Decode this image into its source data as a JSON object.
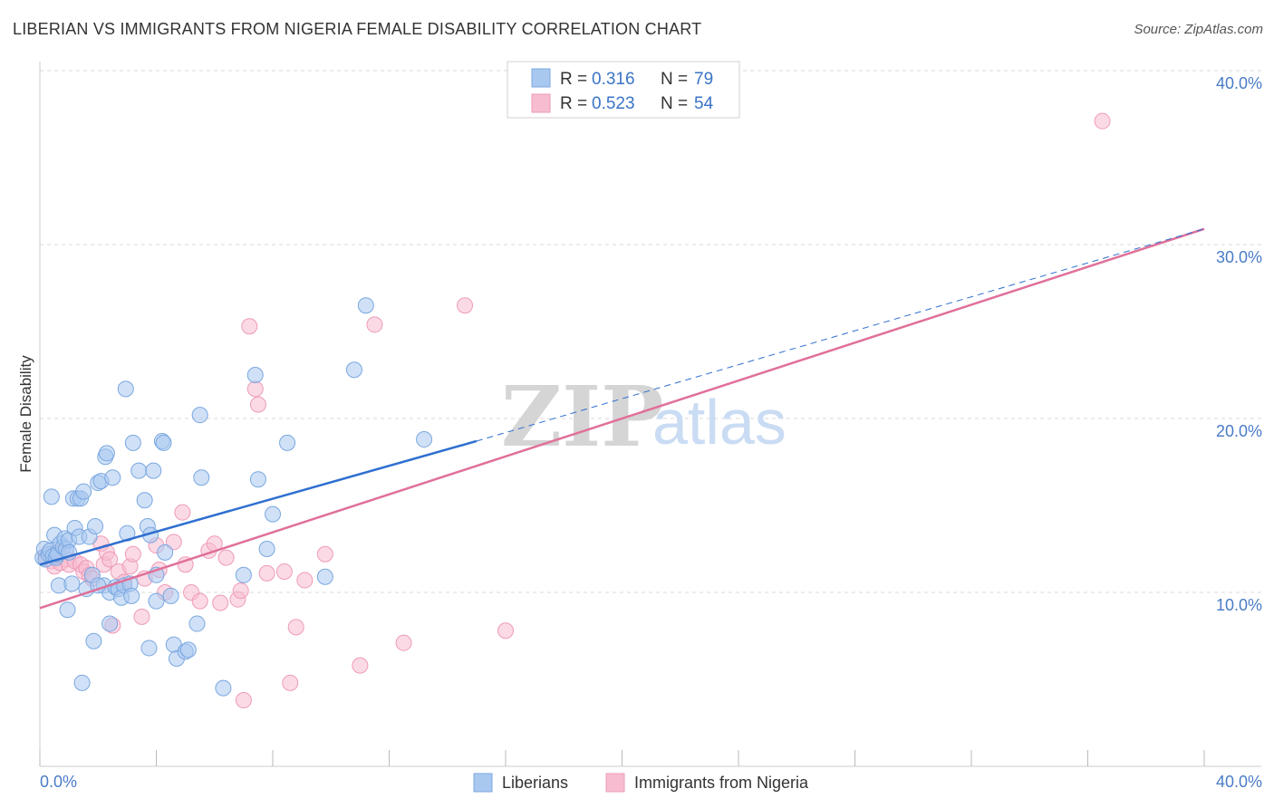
{
  "header": {
    "title": "LIBERIAN VS IMMIGRANTS FROM NIGERIA FEMALE DISABILITY CORRELATION CHART",
    "source": "Source: ZipAtlas.com"
  },
  "watermark": {
    "zip": "ZIP",
    "atlas": "atlas"
  },
  "legend": {
    "rows": [
      {
        "r_label": "R = ",
        "r_value": "0.316",
        "n_label": "N = ",
        "n_value": "79"
      },
      {
        "r_label": "R = ",
        "r_value": "0.523",
        "n_label": "N = ",
        "n_value": "54"
      }
    ]
  },
  "bottom_legend": {
    "liberians": "Liberians",
    "nigeria": "Immigrants from Nigeria"
  },
  "colors": {
    "liberians_fill": "#a9c8f0",
    "liberians_stroke": "#7aa7e0",
    "liberians_line": "#2f6fd0",
    "nigeria_fill": "#f7bcd0",
    "nigeria_stroke": "#ee9bb8",
    "nigeria_line": "#e0709a",
    "tick_text": "#4a7cc7",
    "grid": "#d8d8d8"
  },
  "chart_data": {
    "type": "scatter",
    "title": "LIBERIAN VS IMMIGRANTS FROM NIGERIA FEMALE DISABILITY CORRELATION CHART",
    "xlabel": "",
    "ylabel": "Female Disability",
    "xlim": [
      0,
      40
    ],
    "ylim": [
      0,
      40
    ],
    "x_tick_labels": [
      "0.0%",
      "40.0%"
    ],
    "y_ticks": [
      10,
      20,
      30,
      40
    ],
    "y_tick_labels": [
      "10.0%",
      "20.0%",
      "30.0%",
      "40.0%"
    ],
    "grid": true,
    "legend_position": "top-center",
    "series": [
      {
        "name": "Liberians",
        "r": 0.316,
        "n": 79,
        "trend": {
          "x0": 0,
          "y0": 11.6,
          "x1": 15,
          "y1": 18.7,
          "dashed_to_x": 40,
          "dashed_to_y": 30.9
        },
        "points": [
          [
            0.1,
            12.0
          ],
          [
            0.15,
            12.5
          ],
          [
            0.2,
            11.9
          ],
          [
            0.3,
            12.2
          ],
          [
            0.35,
            12.4
          ],
          [
            0.4,
            15.5
          ],
          [
            0.45,
            12.1
          ],
          [
            0.5,
            13.3
          ],
          [
            0.55,
            12.0
          ],
          [
            0.6,
            12.2
          ],
          [
            0.65,
            10.4
          ],
          [
            0.7,
            12.8
          ],
          [
            0.8,
            12.6
          ],
          [
            0.85,
            13.1
          ],
          [
            0.9,
            12.5
          ],
          [
            0.95,
            9.0
          ],
          [
            1.0,
            13.0
          ],
          [
            1.1,
            10.5
          ],
          [
            1.15,
            15.4
          ],
          [
            1.2,
            13.7
          ],
          [
            1.3,
            15.4
          ],
          [
            1.35,
            13.2
          ],
          [
            1.4,
            15.4
          ],
          [
            1.45,
            4.8
          ],
          [
            1.5,
            15.8
          ],
          [
            1.6,
            10.2
          ],
          [
            1.7,
            13.2
          ],
          [
            1.8,
            11.0
          ],
          [
            1.85,
            7.2
          ],
          [
            1.9,
            13.8
          ],
          [
            2.0,
            16.3
          ],
          [
            2.1,
            16.4
          ],
          [
            2.2,
            10.4
          ],
          [
            2.25,
            17.8
          ],
          [
            2.3,
            18.0
          ],
          [
            2.4,
            10.0
          ],
          [
            2.5,
            16.6
          ],
          [
            2.6,
            10.3
          ],
          [
            2.7,
            10.2
          ],
          [
            2.8,
            9.7
          ],
          [
            2.9,
            10.4
          ],
          [
            2.95,
            21.7
          ],
          [
            3.0,
            13.4
          ],
          [
            3.1,
            10.5
          ],
          [
            3.15,
            9.8
          ],
          [
            3.2,
            18.6
          ],
          [
            3.4,
            17.0
          ],
          [
            3.6,
            15.3
          ],
          [
            3.7,
            13.8
          ],
          [
            3.75,
            6.8
          ],
          [
            3.8,
            13.3
          ],
          [
            3.9,
            17.0
          ],
          [
            4.0,
            11.0
          ],
          [
            4.0,
            9.5
          ],
          [
            4.2,
            18.7
          ],
          [
            4.25,
            18.6
          ],
          [
            4.3,
            12.3
          ],
          [
            4.5,
            9.8
          ],
          [
            4.6,
            7.0
          ],
          [
            4.7,
            6.2
          ],
          [
            5.0,
            6.6
          ],
          [
            5.1,
            6.7
          ],
          [
            5.4,
            8.2
          ],
          [
            5.5,
            20.2
          ],
          [
            5.55,
            16.6
          ],
          [
            6.3,
            4.5
          ],
          [
            7.0,
            11.0
          ],
          [
            7.4,
            22.5
          ],
          [
            7.5,
            16.5
          ],
          [
            7.8,
            12.5
          ],
          [
            8.0,
            14.5
          ],
          [
            8.5,
            18.6
          ],
          [
            9.8,
            10.9
          ],
          [
            10.8,
            22.8
          ],
          [
            11.2,
            26.5
          ],
          [
            13.2,
            18.8
          ],
          [
            2.4,
            8.2
          ],
          [
            1.0,
            12.3
          ],
          [
            2.0,
            10.4
          ]
        ]
      },
      {
        "name": "Immigrants from Nigeria",
        "r": 0.523,
        "n": 54,
        "trend": {
          "x0": 0,
          "y0": 9.1,
          "x1": 40,
          "y1": 30.9
        },
        "points": [
          [
            0.2,
            12.1
          ],
          [
            0.4,
            11.8
          ],
          [
            0.5,
            11.5
          ],
          [
            0.6,
            12.3
          ],
          [
            0.7,
            11.7
          ],
          [
            0.9,
            11.9
          ],
          [
            1.0,
            11.6
          ],
          [
            1.2,
            11.8
          ],
          [
            1.4,
            11.6
          ],
          [
            1.5,
            11.2
          ],
          [
            1.6,
            11.4
          ],
          [
            1.7,
            11.0
          ],
          [
            1.8,
            10.8
          ],
          [
            2.1,
            12.8
          ],
          [
            2.2,
            11.6
          ],
          [
            2.3,
            12.3
          ],
          [
            2.4,
            11.9
          ],
          [
            2.5,
            8.1
          ],
          [
            2.7,
            11.2
          ],
          [
            2.9,
            10.6
          ],
          [
            3.1,
            11.5
          ],
          [
            3.2,
            12.2
          ],
          [
            3.5,
            8.6
          ],
          [
            3.6,
            10.8
          ],
          [
            4.0,
            12.7
          ],
          [
            4.1,
            11.3
          ],
          [
            4.3,
            10.0
          ],
          [
            4.6,
            12.9
          ],
          [
            4.9,
            14.6
          ],
          [
            5.0,
            11.6
          ],
          [
            5.2,
            10.0
          ],
          [
            5.5,
            9.5
          ],
          [
            5.8,
            12.4
          ],
          [
            6.0,
            12.8
          ],
          [
            6.2,
            9.4
          ],
          [
            6.4,
            12.0
          ],
          [
            6.8,
            9.6
          ],
          [
            6.9,
            10.1
          ],
          [
            7.0,
            3.8
          ],
          [
            7.2,
            25.3
          ],
          [
            7.4,
            21.7
          ],
          [
            7.5,
            20.8
          ],
          [
            7.8,
            11.1
          ],
          [
            8.4,
            11.2
          ],
          [
            8.6,
            4.8
          ],
          [
            8.8,
            8.0
          ],
          [
            9.1,
            10.7
          ],
          [
            9.8,
            12.2
          ],
          [
            11.0,
            5.8
          ],
          [
            11.5,
            25.4
          ],
          [
            12.5,
            7.1
          ],
          [
            14.6,
            26.5
          ],
          [
            16.0,
            7.8
          ],
          [
            36.5,
            37.1
          ]
        ]
      }
    ]
  }
}
